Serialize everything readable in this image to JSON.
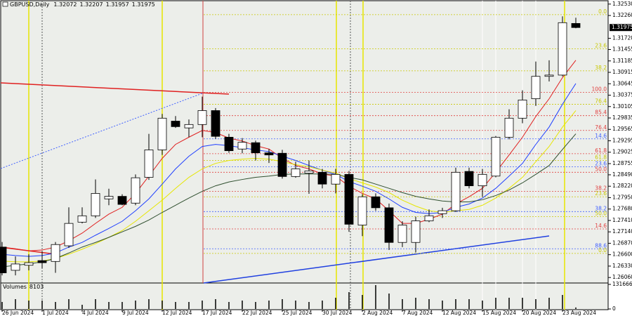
{
  "chart_data": {
    "type": "candlestick",
    "title": "GBPUSD,Daily",
    "categories": [
      "26 Jun 2024",
      null,
      null,
      "1 Jul 2024",
      null,
      null,
      "4 Jul 2024",
      null,
      null,
      "9 Jul 2024",
      null,
      null,
      "12 Jul 2024",
      null,
      null,
      "17 Jul 2024",
      null,
      null,
      "22 Jul 2024",
      null,
      null,
      "25 Jul 2024",
      null,
      null,
      "30 Jul 2024",
      null,
      null,
      "2 Aug 2024",
      null,
      null,
      "7 Aug 2024",
      null,
      null,
      "12 Aug 2024",
      null,
      null,
      "15 Aug 2024",
      null,
      null,
      "20 Aug 2024",
      null,
      null,
      "23 Aug 2024",
      null
    ],
    "open": [
      1.2678,
      1.2623,
      1.2635,
      1.2646,
      1.2644,
      1.2681,
      1.2737,
      1.2752,
      1.2792,
      1.2798,
      1.2782,
      1.2843,
      1.2908,
      1.2976,
      1.296,
      1.2968,
      1.3001,
      1.2938,
      1.291,
      1.2925,
      1.2901,
      1.29,
      1.2845,
      1.2853,
      1.2855,
      1.2827,
      1.285,
      1.273,
      1.2797,
      1.2771,
      1.2689,
      1.2689,
      1.274,
      1.2757,
      1.2764,
      1.2857,
      1.2823,
      1.2846,
      1.2938,
      1.2983,
      1.3029,
      1.3082,
      1.3085,
      1.32072
    ],
    "high": [
      1.269,
      1.2656,
      1.2661,
      1.2667,
      1.269,
      1.2772,
      1.2772,
      1.2838,
      1.2816,
      1.2803,
      1.285,
      1.2946,
      1.2993,
      1.2988,
      1.298,
      1.3034,
      1.3007,
      1.2946,
      1.2936,
      1.293,
      1.291,
      1.2908,
      1.288,
      1.2883,
      1.2863,
      1.2863,
      1.2858,
      1.2803,
      1.2805,
      1.2781,
      1.2739,
      1.275,
      1.2767,
      1.2771,
      1.2866,
      1.2866,
      1.2863,
      1.2941,
      1.3004,
      1.3049,
      1.3117,
      1.312,
      1.3224,
      1.32207
    ],
    "low": [
      1.2611,
      1.2611,
      1.2623,
      1.2628,
      1.2617,
      1.2676,
      1.2734,
      1.2747,
      1.2777,
      1.2777,
      1.2777,
      1.2837,
      1.2896,
      1.296,
      1.2938,
      1.2938,
      1.2934,
      1.2901,
      1.29,
      1.2883,
      1.2877,
      1.284,
      1.2842,
      1.2804,
      1.2817,
      1.2805,
      1.2714,
      1.2704,
      1.2764,
      1.2671,
      1.2678,
      1.2665,
      1.2737,
      1.2747,
      1.2761,
      1.2817,
      1.2797,
      1.2843,
      1.2933,
      1.2971,
      1.3012,
      1.307,
      1.3082,
      1.31957
    ],
    "close": [
      1.2617,
      1.2638,
      1.2641,
      1.2641,
      1.2684,
      1.2734,
      1.2752,
      1.2805,
      1.2798,
      1.2779,
      1.2842,
      1.2908,
      1.2983,
      1.2963,
      1.2968,
      1.3001,
      1.294,
      1.2906,
      1.2926,
      1.2901,
      1.2896,
      1.2845,
      1.2863,
      1.2858,
      1.2827,
      1.285,
      1.2732,
      1.2797,
      1.2771,
      1.2689,
      1.273,
      1.274,
      1.2752,
      1.2764,
      1.2855,
      1.2823,
      1.285,
      1.2938,
      1.2983,
      1.3026,
      1.3082,
      1.3085,
      1.3209,
      1.31975
    ],
    "moving_averages": [
      {
        "color": "#e02020",
        "values": [
          1.2678,
          1.2674,
          1.2669,
          1.2671,
          1.2678,
          1.2693,
          1.2711,
          1.2734,
          1.2756,
          1.2772,
          1.2805,
          1.2846,
          1.2888,
          1.2921,
          1.2938,
          1.2954,
          1.2949,
          1.2936,
          1.2929,
          1.2918,
          1.291,
          1.2888,
          1.2871,
          1.2863,
          1.2851,
          1.2846,
          1.2822,
          1.2805,
          1.2792,
          1.2764,
          1.2734,
          1.2734,
          1.2744,
          1.2756,
          1.278,
          1.2797,
          1.2817,
          1.2855,
          1.2896,
          1.2938,
          1.2987,
          1.3029,
          1.3079,
          1.312
        ]
      },
      {
        "color": "#2040ff",
        "values": [
          1.2661,
          1.2658,
          1.2656,
          1.2658,
          1.2664,
          1.2678,
          1.2689,
          1.2706,
          1.2722,
          1.2739,
          1.2764,
          1.2792,
          1.2827,
          1.2863,
          1.2893,
          1.2916,
          1.2921,
          1.2918,
          1.2913,
          1.2908,
          1.2904,
          1.2893,
          1.2883,
          1.2871,
          1.286,
          1.285,
          1.2833,
          1.2822,
          1.281,
          1.2792,
          1.2772,
          1.276,
          1.2757,
          1.276,
          1.2772,
          1.278,
          1.2794,
          1.2817,
          1.2846,
          1.2876,
          1.2921,
          1.2962,
          1.3016,
          1.3065
        ]
      },
      {
        "color": "#e6e600",
        "values": [
          1.2645,
          1.2643,
          1.2643,
          1.2645,
          1.2651,
          1.2661,
          1.2673,
          1.2686,
          1.2701,
          1.2717,
          1.2739,
          1.2764,
          1.2789,
          1.2817,
          1.2843,
          1.2863,
          1.2876,
          1.2883,
          1.2886,
          1.2888,
          1.2886,
          1.288,
          1.2873,
          1.2868,
          1.286,
          1.2853,
          1.284,
          1.283,
          1.282,
          1.2807,
          1.2789,
          1.2775,
          1.2764,
          1.276,
          1.2764,
          1.2767,
          1.2777,
          1.2794,
          1.2817,
          1.2843,
          1.288,
          1.2916,
          1.2962,
          1.3001
        ]
      },
      {
        "color": "#2f4f2f",
        "values": [
          1.2631,
          1.2635,
          1.2638,
          1.2643,
          1.2651,
          1.2664,
          1.2678,
          1.2689,
          1.2701,
          1.2714,
          1.2727,
          1.2742,
          1.276,
          1.2777,
          1.2794,
          1.281,
          1.2823,
          1.2832,
          1.2838,
          1.2843,
          1.2846,
          1.285,
          1.2851,
          1.2851,
          1.2851,
          1.285,
          1.2843,
          1.2837,
          1.2827,
          1.2817,
          1.2807,
          1.2798,
          1.2792,
          1.2787,
          1.2785,
          1.2785,
          1.279,
          1.28,
          1.2813,
          1.283,
          1.285,
          1.2871,
          1.2909,
          1.2946
        ]
      }
    ],
    "levels": [
      {
        "label": "0.0",
        "value": 1.3228,
        "color": "#c8c800"
      },
      {
        "label": "23.6",
        "value": 1.3147,
        "color": "#c8c800"
      },
      {
        "label": "38.2",
        "value": 1.3095,
        "color": "#c8c800"
      },
      {
        "label": "100.0",
        "value": 1.3044,
        "color": "#e04040"
      },
      {
        "label": "76.4",
        "value": 1.3016,
        "color": "#c8c800"
      },
      {
        "label": "85.4",
        "value": 1.2989,
        "color": "#e04040"
      },
      {
        "label": "76.4",
        "value": 1.2954,
        "color": "#e04040"
      },
      {
        "label": "14.6",
        "value": 1.2934,
        "color": "#4060ff"
      },
      {
        "label": "61.8",
        "value": 1.2899,
        "color": "#e04040"
      },
      {
        "label": "61.8",
        "value": 1.2883,
        "color": "#c8c800"
      },
      {
        "label": "23.6",
        "value": 1.2868,
        "color": "#4060ff"
      },
      {
        "label": "50.0",
        "value": 1.2855,
        "color": "#e04040"
      },
      {
        "label": "38.2",
        "value": 1.281,
        "color": "#e04040"
      },
      {
        "label": "23.6",
        "value": 1.2797,
        "color": "#c8c800"
      },
      {
        "label": "38.2",
        "value": 1.2762,
        "color": "#4060ff"
      },
      {
        "label": "50.0",
        "value": 1.275,
        "color": "#c8c800"
      },
      {
        "label": "14.6",
        "value": 1.2721,
        "color": "#e04040"
      },
      {
        "label": "88.6",
        "value": 1.2674,
        "color": "#4060ff"
      },
      {
        "label": "0.0",
        "value": 1.2663,
        "color": "#c8c800"
      }
    ],
    "ylim": [
      1.2593,
      1.3261
    ],
    "yticks": [
      {
        "value": 1.3253,
        "label": "1.32530"
      },
      {
        "value": 1.3226,
        "label": "1.32260"
      },
      {
        "value": 1.3172,
        "label": "1.31720"
      },
      {
        "value": 1.31455,
        "label": "1.31455"
      },
      {
        "value": 1.31185,
        "label": "1.31185"
      },
      {
        "value": 1.30915,
        "label": "1.30915"
      },
      {
        "value": 1.30645,
        "label": "1.30645"
      },
      {
        "value": 1.30375,
        "label": "1.30375"
      },
      {
        "value": 1.30105,
        "label": "1.30105"
      },
      {
        "value": 1.29835,
        "label": "1.29835"
      },
      {
        "value": 1.29565,
        "label": "1.29565"
      },
      {
        "value": 1.29295,
        "label": "1.29295"
      },
      {
        "value": 1.29025,
        "label": "1.29025"
      },
      {
        "value": 1.28755,
        "label": "1.28755"
      },
      {
        "value": 1.2849,
        "label": "1.28490"
      },
      {
        "value": 1.2822,
        "label": "1.28220"
      },
      {
        "value": 1.2795,
        "label": "1.27950"
      },
      {
        "value": 1.2768,
        "label": "1.27680"
      },
      {
        "value": 1.2741,
        "label": "1.27410"
      },
      {
        "value": 1.2714,
        "label": "1.27140"
      },
      {
        "value": 1.2687,
        "label": "1.26870"
      },
      {
        "value": 1.266,
        "label": "1.26600"
      },
      {
        "value": 1.2633,
        "label": "1.26330"
      },
      {
        "value": 1.2606,
        "label": "1.26060"
      }
    ],
    "volume": {
      "label": "Volumes",
      "values": [
        37600,
        52700,
        45100,
        45100,
        37600,
        52700,
        22600,
        52700,
        37600,
        37600,
        45100,
        52700,
        45100,
        37600,
        37600,
        45100,
        52700,
        37600,
        45100,
        37600,
        45100,
        52700,
        45100,
        37600,
        45100,
        60200,
        90300,
        75200,
        127900,
        82800,
        52700,
        60200,
        52700,
        45100,
        52700,
        52700,
        45100,
        60200,
        60200,
        60200,
        52700,
        60200,
        75200,
        8103
      ],
      "ylim": [
        0,
        131666
      ],
      "yticks": [
        131666,
        0
      ],
      "color": "#000000"
    }
  }
}
